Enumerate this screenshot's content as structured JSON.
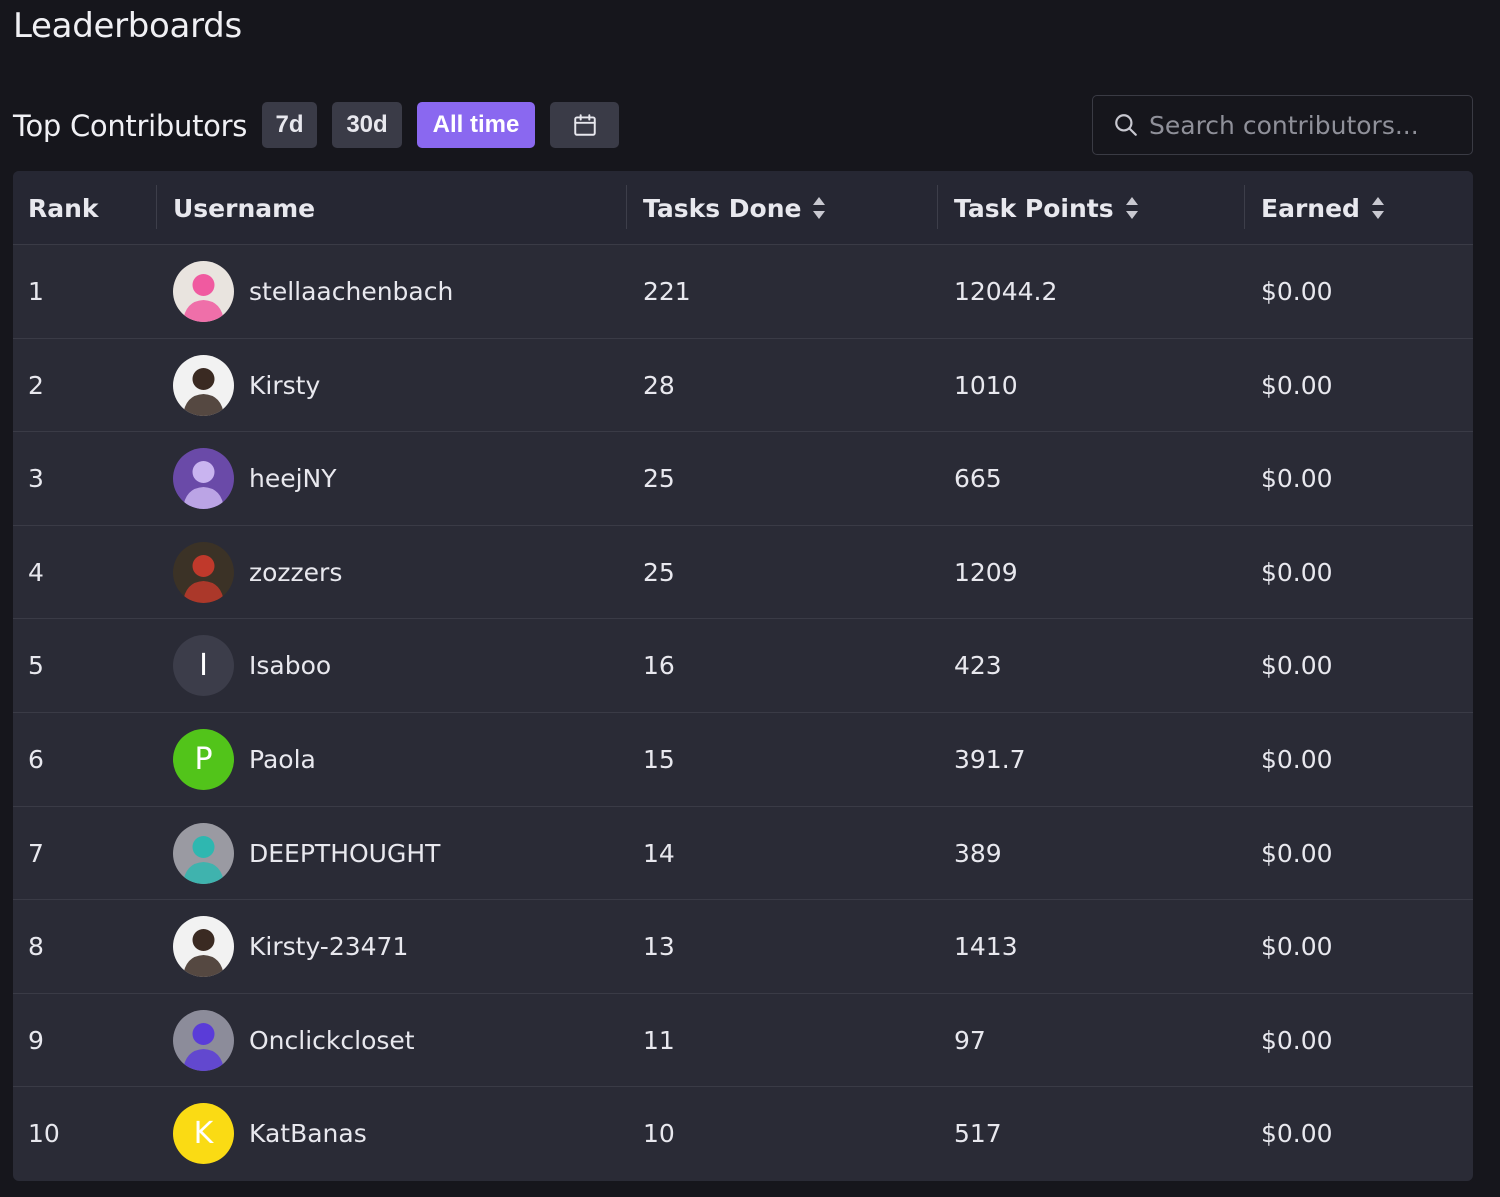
{
  "page": {
    "title": "Leaderboards"
  },
  "toolbar": {
    "section_title": "Top Contributors",
    "ranges": [
      "7d",
      "30d",
      "All time"
    ],
    "active_range": "All time",
    "search_placeholder": "Search contributors..."
  },
  "table": {
    "headers": {
      "rank": "Rank",
      "username": "Username",
      "tasks_done": "Tasks Done",
      "task_points": "Task Points",
      "earned": "Earned"
    },
    "rows": [
      {
        "rank": "1",
        "username": "stellaachenbach",
        "tasks_done": "221",
        "task_points": "12044.2",
        "earned": "$0.00",
        "avatar": {
          "type": "image",
          "icon": "pink-hair-character-avatar",
          "bg": "#e9e4df",
          "accent": "#f05aa0"
        }
      },
      {
        "rank": "2",
        "username": "Kirsty",
        "tasks_done": "28",
        "task_points": "1010",
        "earned": "$0.00",
        "avatar": {
          "type": "image",
          "icon": "woman-portrait-avatar",
          "bg": "#f2f2f2",
          "accent": "#3a2a22"
        }
      },
      {
        "rank": "3",
        "username": "heejNY",
        "tasks_done": "25",
        "task_points": "665",
        "earned": "$0.00",
        "avatar": {
          "type": "image",
          "icon": "photo-collage-avatar",
          "bg": "#6a4aa8",
          "accent": "#c9b4f0"
        }
      },
      {
        "rank": "4",
        "username": "zozzers",
        "tasks_done": "25",
        "task_points": "1209",
        "earned": "$0.00",
        "avatar": {
          "type": "image",
          "icon": "group-photo-avatar",
          "bg": "#3b3226",
          "accent": "#c0392b"
        }
      },
      {
        "rank": "5",
        "username": "Isaboo",
        "tasks_done": "16",
        "task_points": "423",
        "earned": "$0.00",
        "avatar": {
          "type": "letter",
          "letter": "I",
          "bg": "#3c3d4a"
        }
      },
      {
        "rank": "6",
        "username": "Paola",
        "tasks_done": "15",
        "task_points": "391.7",
        "earned": "$0.00",
        "avatar": {
          "type": "letter",
          "letter": "P",
          "bg": "#52c41a"
        }
      },
      {
        "rank": "7",
        "username": "DEEPTHOUGHT",
        "tasks_done": "14",
        "task_points": "389",
        "earned": "$0.00",
        "avatar": {
          "type": "image",
          "icon": "robot-character-avatar",
          "bg": "#9a9aa2",
          "accent": "#2fb7b0"
        }
      },
      {
        "rank": "8",
        "username": "Kirsty-23471",
        "tasks_done": "13",
        "task_points": "1413",
        "earned": "$0.00",
        "avatar": {
          "type": "image",
          "icon": "woman-portrait-avatar",
          "bg": "#f2f2f2",
          "accent": "#3a2a22"
        }
      },
      {
        "rank": "9",
        "username": "Onclickcloset",
        "tasks_done": "11",
        "task_points": "97",
        "earned": "$0.00",
        "avatar": {
          "type": "image",
          "icon": "purple-gown-avatar",
          "bg": "#8c8c9a",
          "accent": "#5a3cd8"
        }
      },
      {
        "rank": "10",
        "username": "KatBanas",
        "tasks_done": "10",
        "task_points": "517",
        "earned": "$0.00",
        "avatar": {
          "type": "letter",
          "letter": "K",
          "bg": "#fadb14"
        }
      }
    ]
  }
}
